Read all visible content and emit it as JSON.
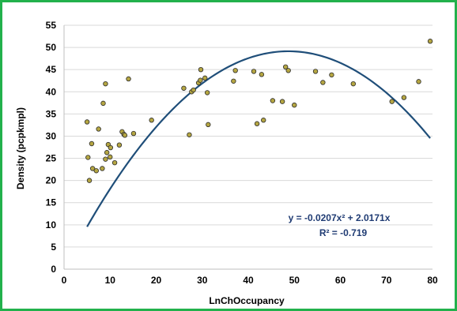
{
  "chart_data": {
    "type": "scatter",
    "title": "",
    "xlabel": "LnChOccupancy",
    "ylabel": "Density (pcpkmpl)",
    "xlim": [
      0,
      80
    ],
    "ylim": [
      0,
      55
    ],
    "x_ticks": [
      "0",
      "10",
      "20",
      "30",
      "40",
      "50",
      "60",
      "70",
      "80"
    ],
    "y_ticks": [
      "0",
      "5",
      "10",
      "15",
      "20",
      "25",
      "30",
      "35",
      "40",
      "45",
      "50",
      "55"
    ],
    "grid": "horizontal",
    "point_color": "#b5a642",
    "trend_color": "#1f4e79",
    "equation": "y = -0.0207x² + 2.0171x",
    "r_squared": "R² = -0.719",
    "trendline": {
      "a": -0.0207,
      "b": 2.0171,
      "c": 0,
      "x_from": 5,
      "x_to": 79.5
    },
    "points": [
      [
        5,
        33.2
      ],
      [
        5.2,
        25.2
      ],
      [
        5.5,
        20
      ],
      [
        6,
        28.3
      ],
      [
        6.2,
        22.7
      ],
      [
        7,
        22.2
      ],
      [
        7.5,
        31.6
      ],
      [
        8.3,
        22.7
      ],
      [
        8.5,
        37.4
      ],
      [
        9,
        24.8
      ],
      [
        9,
        41.8
      ],
      [
        9.3,
        26.3
      ],
      [
        9.6,
        28.1
      ],
      [
        10,
        25.3
      ],
      [
        10.1,
        27.4
      ],
      [
        11,
        24
      ],
      [
        12,
        28
      ],
      [
        12.6,
        31
      ],
      [
        13,
        30.4
      ],
      [
        13.2,
        30.2
      ],
      [
        14,
        42.9
      ],
      [
        15.1,
        30.6
      ],
      [
        19,
        33.6
      ],
      [
        26,
        40.8
      ],
      [
        27.2,
        30.3
      ],
      [
        27.7,
        40
      ],
      [
        28.1,
        40.4
      ],
      [
        29.2,
        42
      ],
      [
        29.6,
        42.6
      ],
      [
        29.7,
        45
      ],
      [
        30.6,
        43.1
      ],
      [
        31.1,
        39.8
      ],
      [
        31.3,
        32.6
      ],
      [
        36.8,
        42.4
      ],
      [
        37.2,
        44.8
      ],
      [
        41.2,
        44.6
      ],
      [
        41.9,
        32.8
      ],
      [
        42.9,
        43.9
      ],
      [
        43.3,
        33.6
      ],
      [
        45.3,
        38
      ],
      [
        47.4,
        37.8
      ],
      [
        48.1,
        45.6
      ],
      [
        48.7,
        44.8
      ],
      [
        50,
        37
      ],
      [
        54.6,
        44.6
      ],
      [
        56.2,
        42.1
      ],
      [
        58.1,
        43.8
      ],
      [
        62.8,
        41.8
      ],
      [
        71.2,
        37.8
      ],
      [
        73.8,
        38.7
      ],
      [
        77,
        42.3
      ],
      [
        79.5,
        51.4
      ]
    ]
  }
}
